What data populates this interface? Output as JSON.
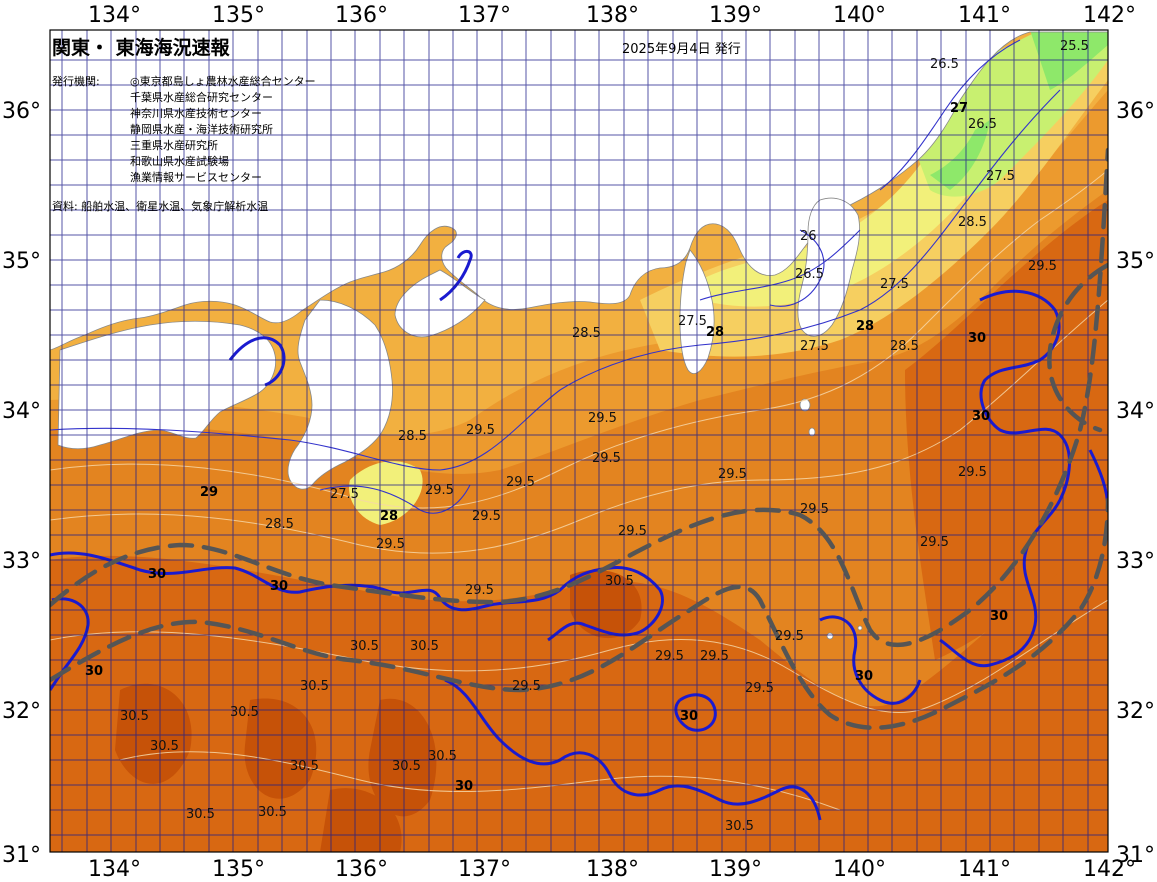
{
  "header": {
    "title": "関東・ 東海海況速報",
    "issue_date": "2025年9月4日 発行"
  },
  "organizations": {
    "label": "発行機関:",
    "items": [
      "◎東京都島しょ農林水産総合センター",
      "千葉県水産総合研究センター",
      "神奈川県水産技術センター",
      "静岡県水産・海洋技術研究所",
      "三重県水産研究所",
      "和歌山県水産試験場",
      "漁業情報サービスセンター"
    ]
  },
  "source": "資料: 船舶水温、衛星水温、気象庁解析水温",
  "axes": {
    "longitude_ticks": [
      "134°",
      "135°",
      "136°",
      "137°",
      "138°",
      "139°",
      "140°",
      "141°",
      "142°"
    ],
    "latitude_ticks": [
      "36°",
      "35°",
      "34°",
      "33°",
      "32°",
      "31°"
    ]
  },
  "isotherm_labels": [
    "25.5",
    "26",
    "26.5",
    "27",
    "27.5",
    "28",
    "28.5",
    "29",
    "29.5",
    "30",
    "30.5"
  ],
  "colors": {
    "land": "#ffffff",
    "sst_26": "#8ee86a",
    "sst_27": "#c8f070",
    "sst_27_5": "#f2f07a",
    "sst_28": "#f6cf60",
    "sst_28_5": "#f2b040",
    "sst_29": "#ec9a2e",
    "sst_29_5": "#e38420",
    "sst_30": "#d86812",
    "sst_30_5": "#c65208",
    "isotherm_30": "#1a1ad0",
    "grid": "#1c1c8a",
    "kuroshio_axis": "#555555"
  }
}
